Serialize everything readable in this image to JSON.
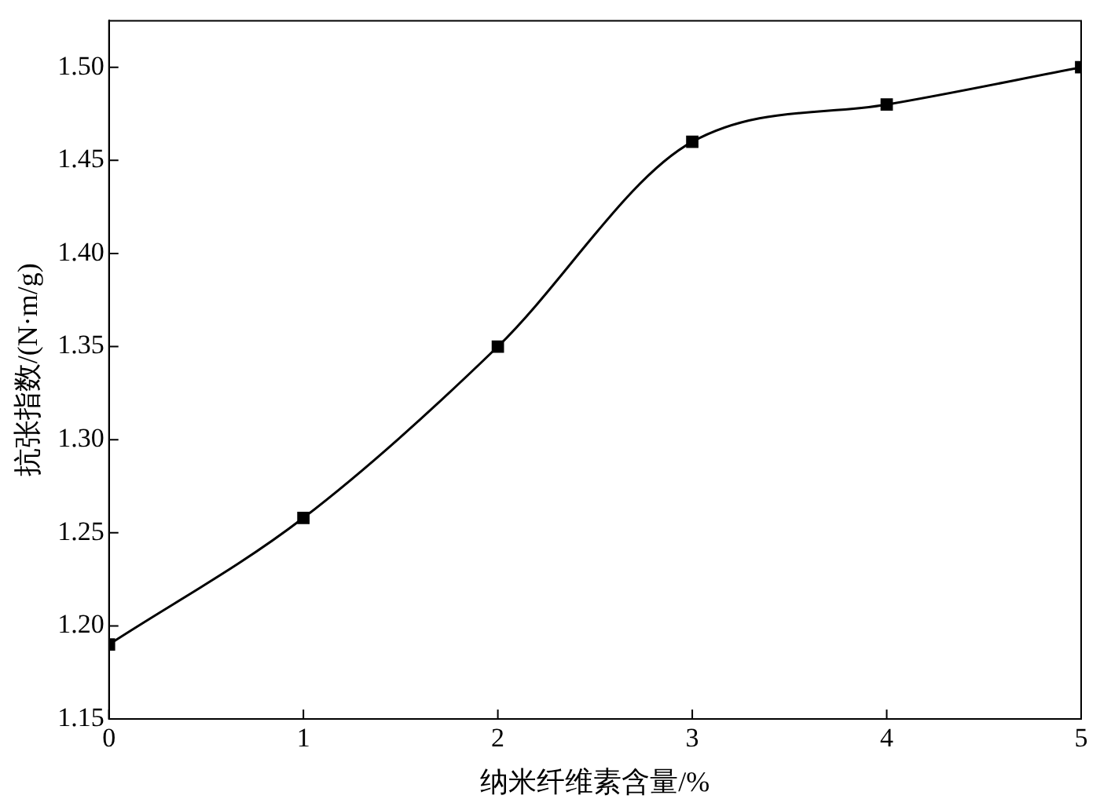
{
  "chart_data": {
    "type": "line",
    "xlabel": "纳米纤维素含量/%",
    "ylabel": "抗张指数/(N·m/g)",
    "x": [
      0,
      1,
      2,
      3,
      4,
      5
    ],
    "series": [
      {
        "color": "#000000",
        "values": [
          1.19,
          1.258,
          1.35,
          1.46,
          1.48,
          1.5
        ]
      }
    ],
    "xlim": [
      0,
      5
    ],
    "xticks": [
      0,
      1,
      2,
      3,
      4,
      5
    ],
    "ylim": [
      1.15,
      1.525
    ],
    "yticks": [
      {
        "value": 1.15,
        "label": "1.15"
      },
      {
        "value": 1.2,
        "label": "1.20"
      },
      {
        "value": 1.25,
        "label": "1.25"
      },
      {
        "value": 1.3,
        "label": "1.30"
      },
      {
        "value": 1.35,
        "label": "1.35"
      },
      {
        "value": 1.4,
        "label": "1.40"
      },
      {
        "value": 1.45,
        "label": "1.45"
      },
      {
        "value": 1.5,
        "label": "1.50"
      }
    ],
    "grid": false,
    "legend": false,
    "marker": "square",
    "line_style": "solid"
  }
}
